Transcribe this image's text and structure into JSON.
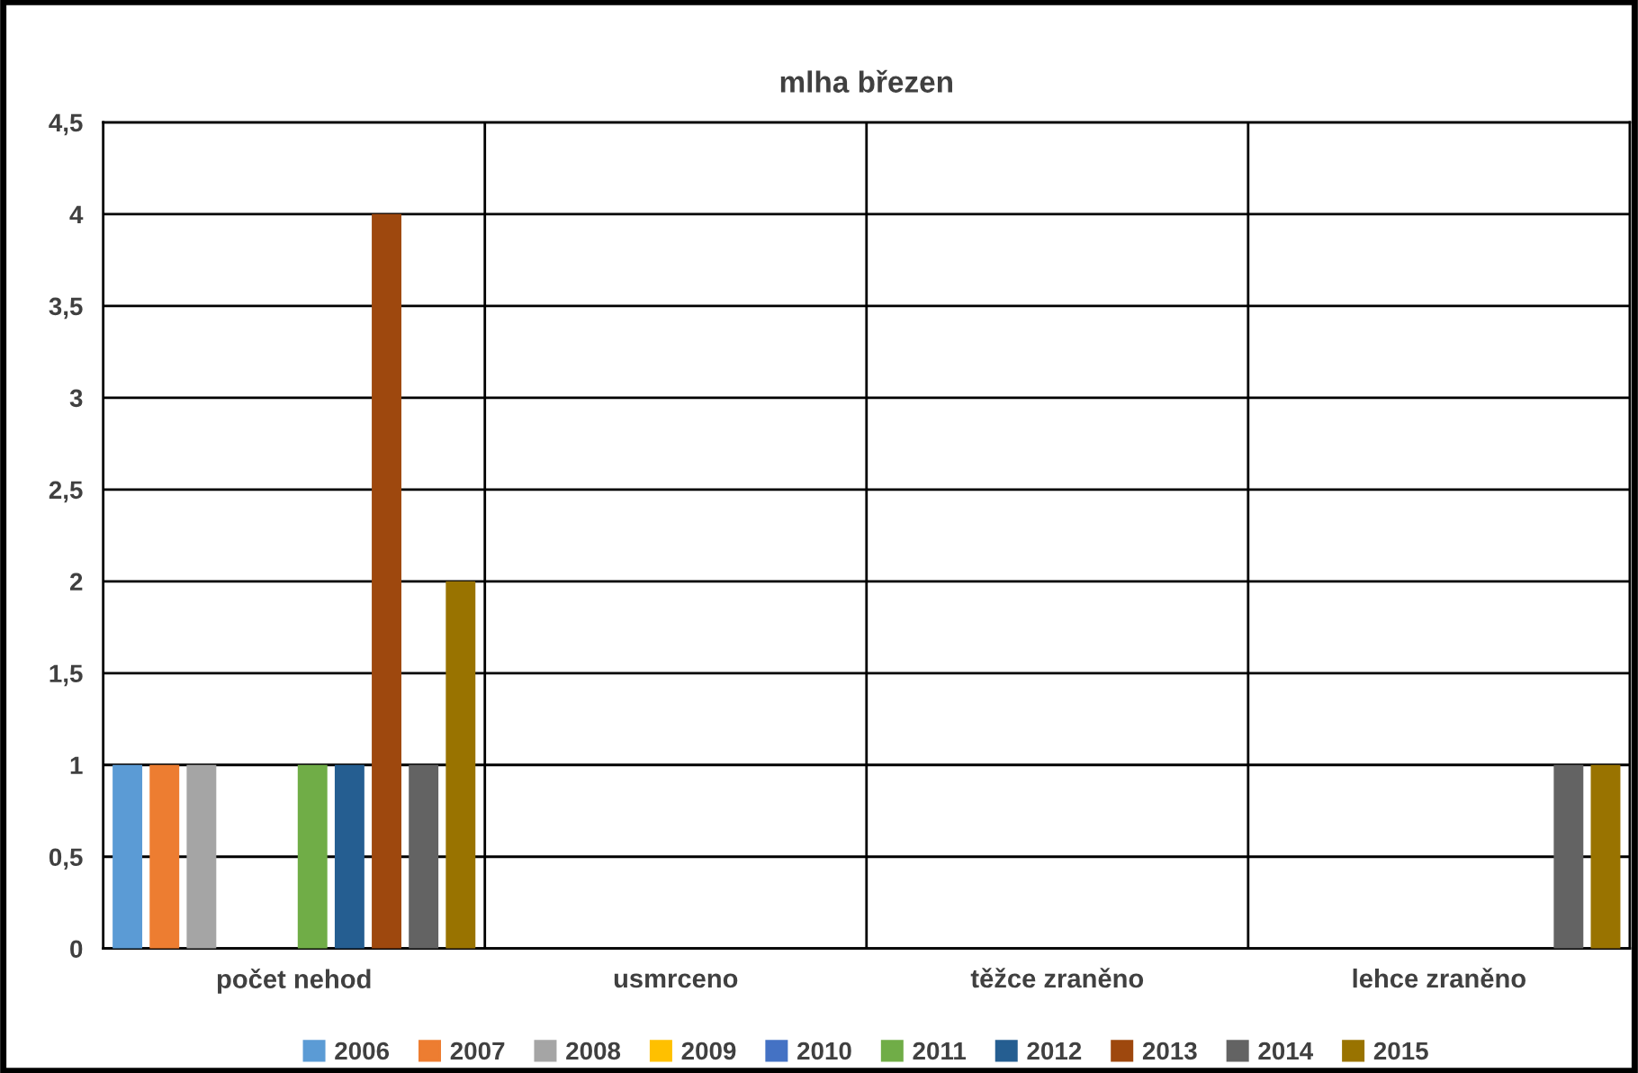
{
  "chart_data": {
    "type": "bar",
    "title": "mlha březen",
    "categories": [
      "počet nehod",
      "usmrceno",
      "těžce zraněno",
      "lehce zraněno"
    ],
    "series": [
      {
        "name": "2006",
        "color": "#5b9bd5",
        "values": [
          1,
          0,
          0,
          0
        ]
      },
      {
        "name": "2007",
        "color": "#ed7d31",
        "values": [
          1,
          0,
          0,
          0
        ]
      },
      {
        "name": "2008",
        "color": "#a5a5a5",
        "values": [
          1,
          0,
          0,
          0
        ]
      },
      {
        "name": "2009",
        "color": "#ffc000",
        "values": [
          0,
          0,
          0,
          0
        ]
      },
      {
        "name": "2010",
        "color": "#4472c4",
        "values": [
          0,
          0,
          0,
          0
        ]
      },
      {
        "name": "2011",
        "color": "#70ad47",
        "values": [
          1,
          0,
          0,
          0
        ]
      },
      {
        "name": "2012",
        "color": "#255e91",
        "values": [
          1,
          0,
          0,
          0
        ]
      },
      {
        "name": "2013",
        "color": "#9e480e",
        "values": [
          4,
          0,
          0,
          0
        ]
      },
      {
        "name": "2014",
        "color": "#636363",
        "values": [
          1,
          0,
          0,
          1
        ]
      },
      {
        "name": "2015",
        "color": "#997300",
        "values": [
          2,
          0,
          0,
          1
        ]
      }
    ],
    "ylim": [
      0,
      4.5
    ],
    "yticks": [
      0,
      {
        "value": 0.5,
        "label": "0,5"
      },
      1,
      {
        "value": 1.5,
        "label": "1,5"
      },
      2,
      {
        "value": 2.5,
        "label": "2,5"
      },
      3,
      {
        "value": 3.5,
        "label": "3,5"
      },
      4,
      {
        "value": 4.5,
        "label": "4,5"
      }
    ],
    "grid": true,
    "legend": "bottom"
  }
}
